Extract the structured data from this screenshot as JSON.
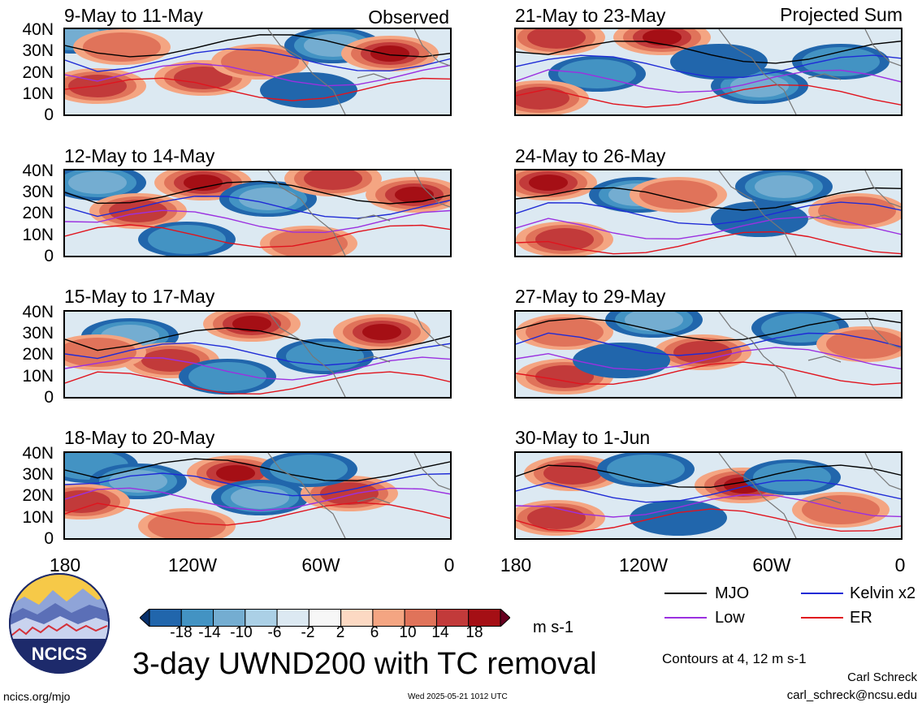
{
  "chart_data": {
    "type": "heatmap",
    "title": "3-day UWND200 with TC removal",
    "variable": "200-hPa zonal wind anomaly with tropical cyclone removal",
    "units": "m s-1",
    "colorbar": {
      "ticks": [
        "-18",
        "-14",
        "-10",
        "-6",
        "-2",
        "2",
        "6",
        "10",
        "14",
        "18"
      ],
      "colors": [
        "#08306b",
        "#2166ac",
        "#4393c3",
        "#74add1",
        "#abd0e6",
        "#dce9f2",
        "#f7f7f7",
        "#fcd9c3",
        "#f4a582",
        "#e0735a",
        "#c23a3a",
        "#a50f15",
        "#67001f"
      ]
    },
    "x_axis": {
      "ticks": [
        "180",
        "120W",
        "60W",
        "0"
      ],
      "range": [
        "180",
        "0"
      ]
    },
    "y_axis": {
      "ticks": [
        "40N",
        "30N",
        "20N",
        "10N",
        "0"
      ],
      "range": [
        "0",
        "40N"
      ]
    },
    "corner_labels": {
      "observed": "Observed",
      "projected": "Projected Sum"
    },
    "panels": [
      {
        "label": "9-May to 11-May",
        "column": "observed"
      },
      {
        "label": "12-May to 14-May",
        "column": "observed"
      },
      {
        "label": "15-May to 17-May",
        "column": "observed"
      },
      {
        "label": "18-May to 20-May",
        "column": "observed"
      },
      {
        "label": "21-May to 23-May",
        "column": "projected"
      },
      {
        "label": "24-May to 26-May",
        "column": "projected"
      },
      {
        "label": "27-May to 29-May",
        "column": "projected"
      },
      {
        "label": "30-May to 1-Jun",
        "column": "projected"
      }
    ],
    "legend": [
      {
        "name": "MJO",
        "color": "#000000"
      },
      {
        "name": "Kelvin x2",
        "color": "#1f2bd6"
      },
      {
        "name": "Low",
        "color": "#9b30e0"
      },
      {
        "name": "ER",
        "color": "#e0141e"
      }
    ],
    "contour_note": "Contours at 4, 12 m s-1"
  },
  "footer": {
    "logo_text": "NCICS",
    "url": "ncics.org/mjo",
    "timestamp": "Wed 2025-05-21 1012 UTC",
    "author": "Carl Schreck",
    "email": "carl_schreck@ncsu.edu"
  }
}
